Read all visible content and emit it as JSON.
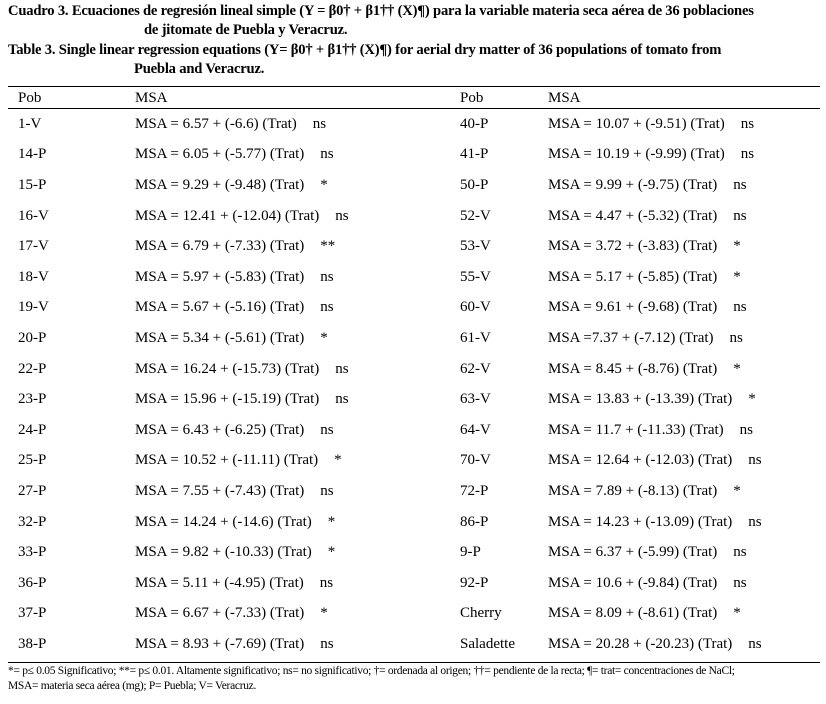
{
  "caption_es": {
    "line1": "Cuadro 3. Ecuaciones de regresión lineal simple (Y = β0† + β1†† (X)¶) para la variable materia seca aérea de 36 poblaciones",
    "line2": "de jitomate de Puebla y Veracruz."
  },
  "caption_en": {
    "line1": "Table 3. Single linear regression equations (Y= β0† + β1†† (X)¶) for aerial dry matter of 36 populations of tomato from",
    "line2": "Puebla and Veracruz."
  },
  "headers": [
    "Pob",
    "MSA",
    "Pob",
    "MSA"
  ],
  "rows": [
    {
      "pob": "1-V",
      "eq": "MSA = 6.57 + (-6.6) (Trat)",
      "sig": "ns",
      "pob2": "40-P",
      "eq2": "MSA = 10.07 + (-9.51) (Trat)",
      "sig2": "ns"
    },
    {
      "pob": "14-P",
      "eq": "MSA = 6.05 + (-5.77) (Trat)",
      "sig": "ns",
      "pob2": "41-P",
      "eq2": "MSA = 10.19 + (-9.99) (Trat)",
      "sig2": "ns"
    },
    {
      "pob": "15-P",
      "eq": "MSA = 9.29 + (-9.48) (Trat)",
      "sig": "*",
      "pob2": "50-P",
      "eq2": "MSA = 9.99 + (-9.75) (Trat)",
      "sig2": "ns"
    },
    {
      "pob": "16-V",
      "eq": "MSA = 12.41 + (-12.04) (Trat)",
      "sig": "ns",
      "pob2": "52-V",
      "eq2": "MSA = 4.47 + (-5.32) (Trat)",
      "sig2": "ns"
    },
    {
      "pob": "17-V",
      "eq": "MSA = 6.79 + (-7.33) (Trat)",
      "sig": "**",
      "pob2": "53-V",
      "eq2": "MSA = 3.72 + (-3.83) (Trat)",
      "sig2": "*"
    },
    {
      "pob": "18-V",
      "eq": "MSA = 5.97 + (-5.83) (Trat)",
      "sig": "ns",
      "pob2": "55-V",
      "eq2": "MSA = 5.17 + (-5.85) (Trat)",
      "sig2": "*"
    },
    {
      "pob": "19-V",
      "eq": "MSA = 5.67 + (-5.16) (Trat)",
      "sig": "ns",
      "pob2": "60-V",
      "eq2": "MSA = 9.61 + (-9.68) (Trat)",
      "sig2": "ns"
    },
    {
      "pob": "20-P",
      "eq": "MSA = 5.34 + (-5.61) (Trat)",
      "sig": "*",
      "pob2": "61-V",
      "eq2": "MSA =7.37 + (-7.12) (Trat)",
      "sig2": "ns"
    },
    {
      "pob": "22-P",
      "eq": "MSA = 16.24 + (-15.73) (Trat)",
      "sig": "ns",
      "pob2": "62-V",
      "eq2": "MSA = 8.45 + (-8.76) (Trat)",
      "sig2": "*"
    },
    {
      "pob": "23-P",
      "eq": "MSA = 15.96 + (-15.19) (Trat)",
      "sig": "ns",
      "pob2": "63-V",
      "eq2": "MSA = 13.83 + (-13.39) (Trat)",
      "sig2": "*"
    },
    {
      "pob": "24-P",
      "eq": "MSA = 6.43 + (-6.25) (Trat)",
      "sig": "ns",
      "pob2": "64-V",
      "eq2": "MSA = 11.7 + (-11.33) (Trat)",
      "sig2": "ns"
    },
    {
      "pob": "25-P",
      "eq": "MSA = 10.52 + (-11.11) (Trat)",
      "sig": "*",
      "pob2": "70-V",
      "eq2": "MSA = 12.64 + (-12.03) (Trat)",
      "sig2": "ns"
    },
    {
      "pob": "27-P",
      "eq": "MSA = 7.55 + (-7.43) (Trat)",
      "sig": "ns",
      "pob2": "72-P",
      "eq2": "MSA = 7.89 + (-8.13) (Trat)",
      "sig2": "*"
    },
    {
      "pob": "32-P",
      "eq": "MSA = 14.24 + (-14.6) (Trat)",
      "sig": "*",
      "pob2": "86-P",
      "eq2": "MSA = 14.23 + (-13.09) (Trat)",
      "sig2": "ns"
    },
    {
      "pob": "33-P",
      "eq": "MSA = 9.82 + (-10.33) (Trat)",
      "sig": "*",
      "pob2": "9-P",
      "eq2": "MSA = 6.37 + (-5.99) (Trat)",
      "sig2": "ns"
    },
    {
      "pob": "36-P",
      "eq": "MSA = 5.11 + (-4.95) (Trat)",
      "sig": "ns",
      "pob2": "92-P",
      "eq2": "MSA = 10.6 + (-9.84) (Trat)",
      "sig2": "ns"
    },
    {
      "pob": "37-P",
      "eq": "MSA = 6.67 + (-7.33) (Trat)",
      "sig": "*",
      "pob2": "Cherry",
      "eq2": "MSA = 8.09 + (-8.61) (Trat)",
      "sig2": "*"
    },
    {
      "pob": "38-P",
      "eq": "MSA = 8.93 + (-7.69) (Trat)",
      "sig": "ns",
      "pob2": "Saladette",
      "eq2": "MSA = 20.28 + (-20.23) (Trat)",
      "sig2": "ns"
    }
  ],
  "footnote": {
    "line1": "*= p≤ 0.05 Significativo; **= p≤ 0.01. Altamente significativo; ns= no significativo; †= ordenada al origen; ††= pendiente de la recta; ¶= trat= concentraciones de NaCl;",
    "line2": "MSA= materia seca aérea (mg); P= Puebla; V= Veracruz."
  }
}
